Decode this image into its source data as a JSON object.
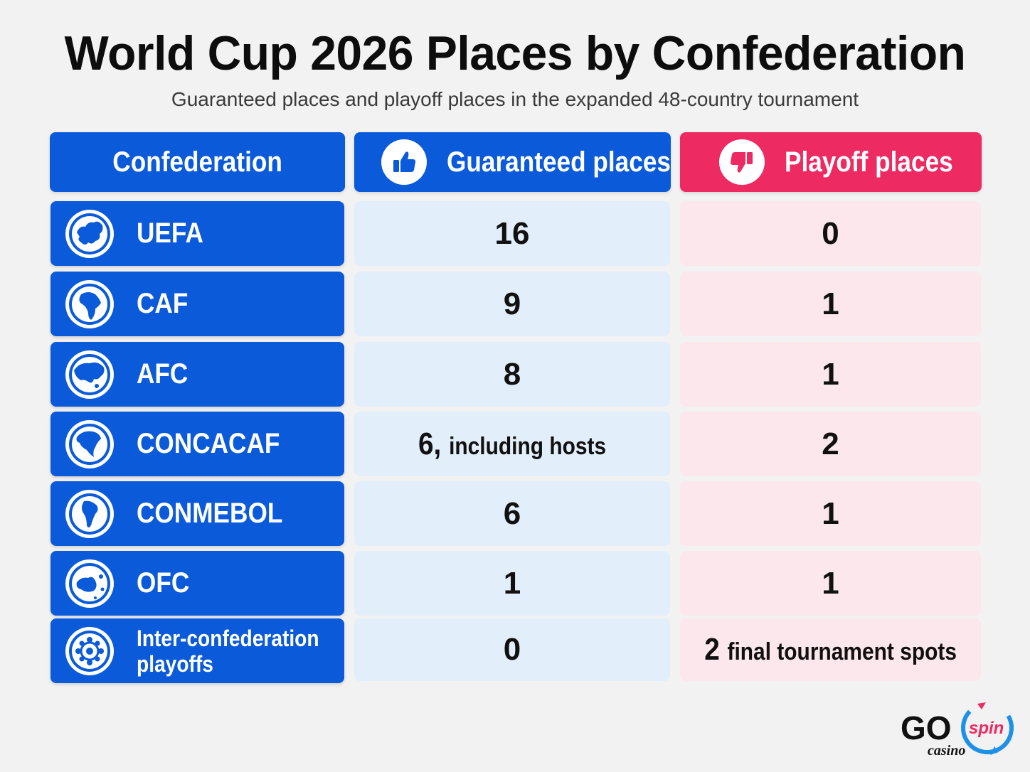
{
  "title": "World Cup 2026 Places by Confederation",
  "subtitle": "Guaranteed places and playoff places in the expanded 48-country tournament",
  "headers": {
    "confederation": "Confederation",
    "guaranteed": "Guaranteed places",
    "playoff": "Playoff places"
  },
  "rows": [
    {
      "name": "UEFA",
      "guaranteed": "16",
      "guaranteed_note": "",
      "playoff": "0",
      "playoff_note": "",
      "icon": "europe-globe-icon"
    },
    {
      "name": "CAF",
      "guaranteed": "9",
      "guaranteed_note": "",
      "playoff": "1",
      "playoff_note": "",
      "icon": "africa-globe-icon"
    },
    {
      "name": "AFC",
      "guaranteed": "8",
      "guaranteed_note": "",
      "playoff": "1",
      "playoff_note": "",
      "icon": "asia-globe-icon"
    },
    {
      "name": "CONCACAF",
      "guaranteed": "6,",
      "guaranteed_note": "including hosts",
      "playoff": "2",
      "playoff_note": "",
      "icon": "north-america-globe-icon"
    },
    {
      "name": "CONMEBOL",
      "guaranteed": "6",
      "guaranteed_note": "",
      "playoff": "1",
      "playoff_note": "",
      "icon": "south-america-globe-icon"
    },
    {
      "name": "OFC",
      "guaranteed": "1",
      "guaranteed_note": "",
      "playoff": "1",
      "playoff_note": "",
      "icon": "oceania-globe-icon"
    },
    {
      "name": "Inter-confederation playoffs",
      "guaranteed": "0",
      "guaranteed_note": "",
      "playoff": "2",
      "playoff_note": "final tournament spots",
      "icon": "network-icon"
    }
  ],
  "logo": {
    "go": "GO",
    "spin": "spin",
    "casino": "casino"
  },
  "colors": {
    "blue": "#0a5ad9",
    "pink": "#ee2a62",
    "light_blue": "#e3eefb",
    "light_pink": "#fbe7ec"
  }
}
